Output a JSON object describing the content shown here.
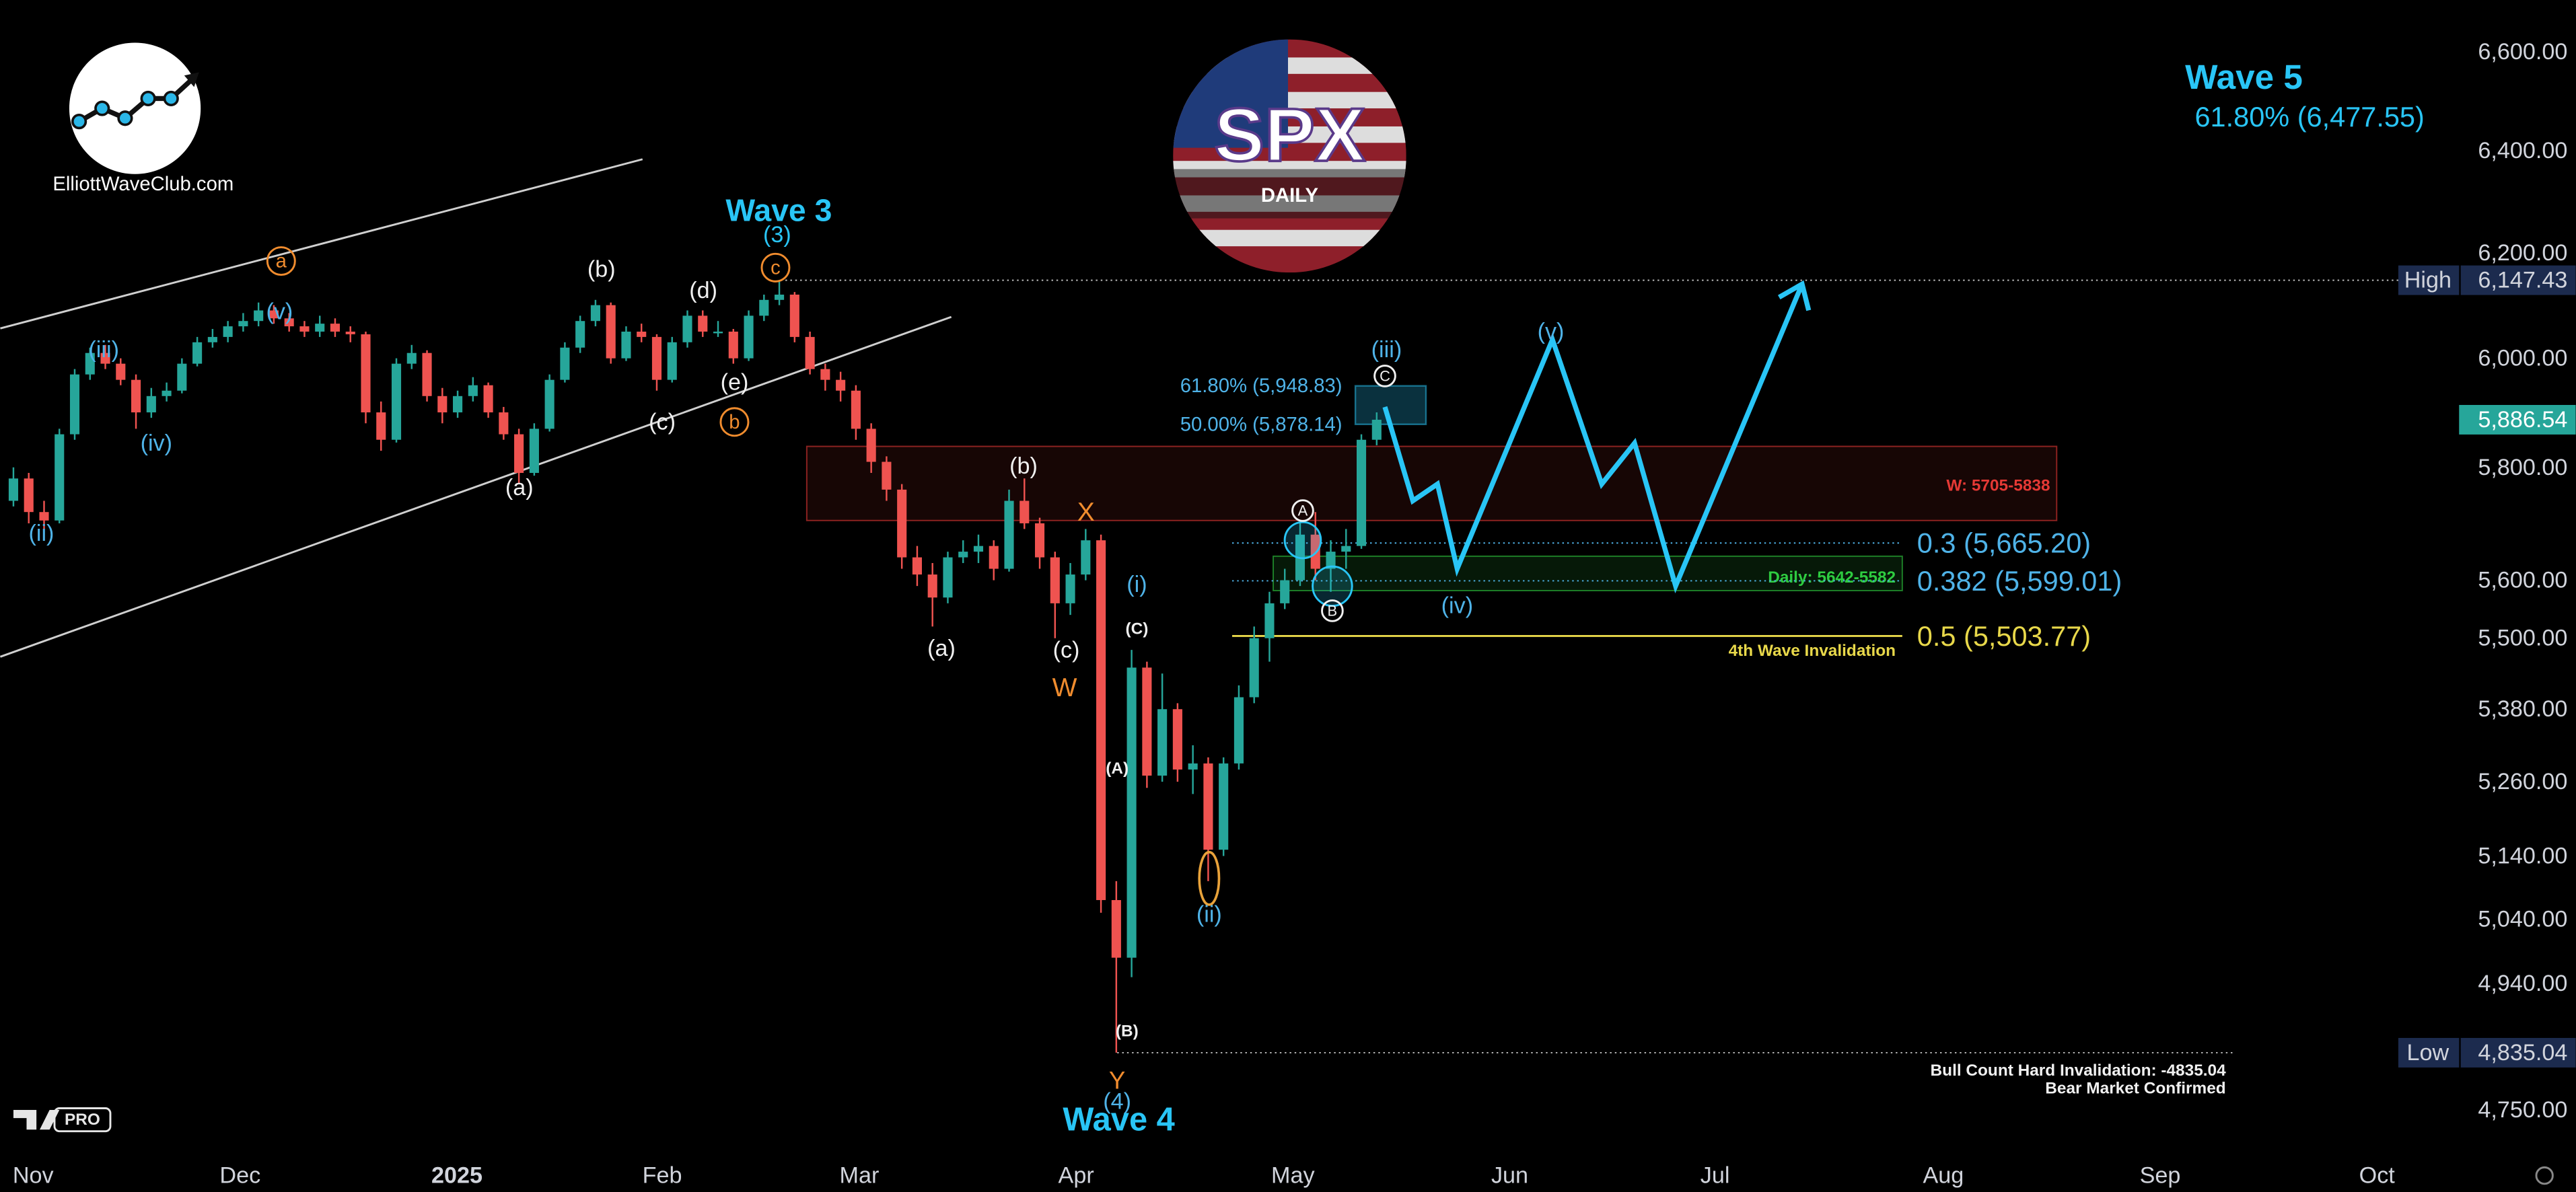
{
  "chart_data": {
    "type": "candlestick",
    "title": "SPX",
    "subtitle": "DAILY",
    "brand": "ElliottWaveClub.com",
    "badge": "PRO",
    "log_scale": true,
    "up_color": "#26a69a",
    "down_color": "#ef5350",
    "ylim": [
      4692,
      6707
    ],
    "yticks": [
      {
        "value": 4750,
        "label": "4,750.00"
      },
      {
        "value": 4940,
        "label": "4,940.00"
      },
      {
        "value": 5040,
        "label": "5,040.00"
      },
      {
        "value": 5140,
        "label": "5,140.00"
      },
      {
        "value": 5260,
        "label": "5,260.00"
      },
      {
        "value": 5380,
        "label": "5,380.00"
      },
      {
        "value": 5500,
        "label": "5,500.00"
      },
      {
        "value": 5600,
        "label": "5,600.00"
      },
      {
        "value": 5800,
        "label": "5,800.00"
      },
      {
        "value": 6000,
        "label": "6,000.00"
      },
      {
        "value": 6200,
        "label": "6,200.00"
      },
      {
        "value": 6400,
        "label": "6,400.00"
      },
      {
        "value": 6600,
        "label": "6,600.00"
      }
    ],
    "xticks": [
      "Nov",
      "Dec",
      "2025",
      "Feb",
      "Mar",
      "Apr",
      "May",
      "Jun",
      "Jul",
      "Aug",
      "Sep",
      "Oct"
    ],
    "candles": [
      [
        5740,
        5800,
        5730,
        5780
      ],
      [
        5780,
        5790,
        5700,
        5720
      ],
      [
        5720,
        5740,
        5690,
        5705
      ],
      [
        5705,
        5870,
        5700,
        5860
      ],
      [
        5860,
        5980,
        5850,
        5970
      ],
      [
        5970,
        6020,
        5960,
        6010
      ],
      [
        6010,
        6025,
        5980,
        5990
      ],
      [
        5990,
        6000,
        5950,
        5960
      ],
      [
        5960,
        5970,
        5870,
        5900
      ],
      [
        5900,
        5945,
        5890,
        5930
      ],
      [
        5930,
        5955,
        5920,
        5940
      ],
      [
        5940,
        6000,
        5935,
        5990
      ],
      [
        5990,
        6040,
        5985,
        6030
      ],
      [
        6030,
        6055,
        6020,
        6040
      ],
      [
        6040,
        6070,
        6030,
        6060
      ],
      [
        6060,
        6085,
        6050,
        6070
      ],
      [
        6070,
        6105,
        6060,
        6090
      ],
      [
        6090,
        6100,
        6065,
        6075
      ],
      [
        6075,
        6085,
        6050,
        6060
      ],
      [
        6060,
        6070,
        6040,
        6050
      ],
      [
        6050,
        6080,
        6040,
        6065
      ],
      [
        6065,
        6075,
        6040,
        6050
      ],
      [
        6050,
        6060,
        6030,
        6045
      ],
      [
        6045,
        6050,
        5880,
        5900
      ],
      [
        5900,
        5920,
        5830,
        5850
      ],
      [
        5850,
        6000,
        5845,
        5990
      ],
      [
        5990,
        6025,
        5980,
        6010
      ],
      [
        6010,
        6015,
        5920,
        5930
      ],
      [
        5930,
        5945,
        5880,
        5900
      ],
      [
        5900,
        5940,
        5890,
        5930
      ],
      [
        5930,
        5965,
        5920,
        5950
      ],
      [
        5950,
        5955,
        5890,
        5900
      ],
      [
        5900,
        5910,
        5850,
        5860
      ],
      [
        5860,
        5870,
        5770,
        5790
      ],
      [
        5790,
        5880,
        5785,
        5870
      ],
      [
        5870,
        5970,
        5865,
        5960
      ],
      [
        5960,
        6030,
        5955,
        6020
      ],
      [
        6020,
        6080,
        6010,
        6070
      ],
      [
        6070,
        6110,
        6060,
        6100
      ],
      [
        6100,
        6105,
        5990,
        6000
      ],
      [
        6000,
        6060,
        5995,
        6050
      ],
      [
        6050,
        6065,
        6030,
        6040
      ],
      [
        6040,
        6045,
        5940,
        5960
      ],
      [
        5960,
        6040,
        5955,
        6030
      ],
      [
        6030,
        6090,
        6020,
        6080
      ],
      [
        6080,
        6090,
        6040,
        6050
      ],
      [
        6050,
        6070,
        6040,
        6050
      ],
      [
        6050,
        6055,
        5990,
        6000
      ],
      [
        6000,
        6090,
        5995,
        6080
      ],
      [
        6080,
        6120,
        6070,
        6110
      ],
      [
        6110,
        6147.43,
        6100,
        6120
      ],
      [
        6120,
        6125,
        6030,
        6040
      ],
      [
        6040,
        6050,
        5970,
        5980
      ],
      [
        5980,
        5990,
        5940,
        5960
      ],
      [
        5960,
        5975,
        5920,
        5940
      ],
      [
        5940,
        5950,
        5850,
        5870
      ],
      [
        5870,
        5880,
        5790,
        5810
      ],
      [
        5810,
        5820,
        5740,
        5760
      ],
      [
        5760,
        5770,
        5620,
        5640
      ],
      [
        5640,
        5660,
        5590,
        5610
      ],
      [
        5610,
        5630,
        5520,
        5570
      ],
      [
        5570,
        5650,
        5560,
        5640
      ],
      [
        5640,
        5670,
        5630,
        5650
      ],
      [
        5650,
        5680,
        5630,
        5660
      ],
      [
        5660,
        5670,
        5600,
        5620
      ],
      [
        5620,
        5760,
        5615,
        5740
      ],
      [
        5740,
        5780,
        5690,
        5700
      ],
      [
        5700,
        5710,
        5620,
        5640
      ],
      [
        5640,
        5650,
        5500,
        5560
      ],
      [
        5560,
        5630,
        5540,
        5610
      ],
      [
        5610,
        5690,
        5600,
        5670
      ],
      [
        5670,
        5680,
        5050,
        5070
      ],
      [
        5070,
        5100,
        4835.04,
        4980
      ],
      [
        4980,
        5480,
        4950,
        5450
      ],
      [
        5450,
        5460,
        5250,
        5270
      ],
      [
        5270,
        5440,
        5260,
        5380
      ],
      [
        5380,
        5390,
        5260,
        5280
      ],
      [
        5280,
        5320,
        5240,
        5290
      ],
      [
        5290,
        5300,
        5100,
        5150
      ],
      [
        5150,
        5300,
        5140,
        5290
      ],
      [
        5290,
        5420,
        5280,
        5400
      ],
      [
        5400,
        5520,
        5390,
        5500
      ],
      [
        5500,
        5580,
        5460,
        5560
      ],
      [
        5560,
        5620,
        5550,
        5600
      ],
      [
        5600,
        5700,
        5590,
        5680
      ],
      [
        5680,
        5720,
        5600,
        5620
      ],
      [
        5620,
        5670,
        5580,
        5650
      ],
      [
        5650,
        5690,
        5620,
        5660
      ],
      [
        5660,
        5860,
        5655,
        5850
      ],
      [
        5850,
        5900,
        5840,
        5886.54
      ]
    ],
    "projection": {
      "color": "#29c5f6",
      "values": [
        5910,
        5740,
        5770,
        5620,
        6035,
        5770,
        5844,
        5590,
        6140
      ]
    },
    "high": {
      "label": "High",
      "value": 6147.43,
      "value_label": "6,147.43"
    },
    "low": {
      "label": "Low",
      "value": 4835.04,
      "value_label": "4,835.04"
    },
    "last": {
      "value": 5886.54,
      "value_label": "5,886.54",
      "color": "#26a69a"
    },
    "retrace_box": [
      {
        "label": "61.80% (5,948.83)",
        "value": 5948.83
      },
      {
        "label": "50.00% (5,878.14)",
        "value": 5878.14
      }
    ],
    "fib_levels": [
      {
        "label": "0.3 (5,665.20)",
        "value": 5665.2,
        "color": "#4fb3e8"
      },
      {
        "label": "0.382 (5,599.01)",
        "value": 5599.01,
        "color": "#4fb3e8"
      },
      {
        "label": "0.5 (5,503.77)",
        "value": 5503.77,
        "color": "#e8d84a"
      }
    ],
    "invalidation_label": "4th Wave Invalidation",
    "zones": [
      {
        "label": "W: 5705-5838",
        "low": 5705,
        "high": 5838,
        "color": "#e53935"
      },
      {
        "label": "Daily: 5642-5582",
        "low": 5582,
        "high": 5642,
        "color": "#2ecc40"
      }
    ],
    "annotations": [
      "Wave 3",
      "(3)",
      "c",
      "a",
      "(b)",
      "(d)",
      "(v)",
      "(iii)",
      "(iv)",
      "(ii)",
      "(e)",
      "(c)",
      "b",
      "(a)",
      "(b)",
      "X",
      "(a)",
      "(c)",
      "W",
      "(i)",
      "(C)",
      "(A)",
      "(B)",
      "Y",
      "(4)",
      "Wave 4",
      "(ii)",
      "A",
      "B",
      "(iii)",
      "C",
      "(iv)",
      "(v)",
      "Wave 5",
      "61.80% (6,477.55)",
      "Bull Count Hard Invalidation: -4835.04",
      "Bear Market Confirmed"
    ]
  }
}
